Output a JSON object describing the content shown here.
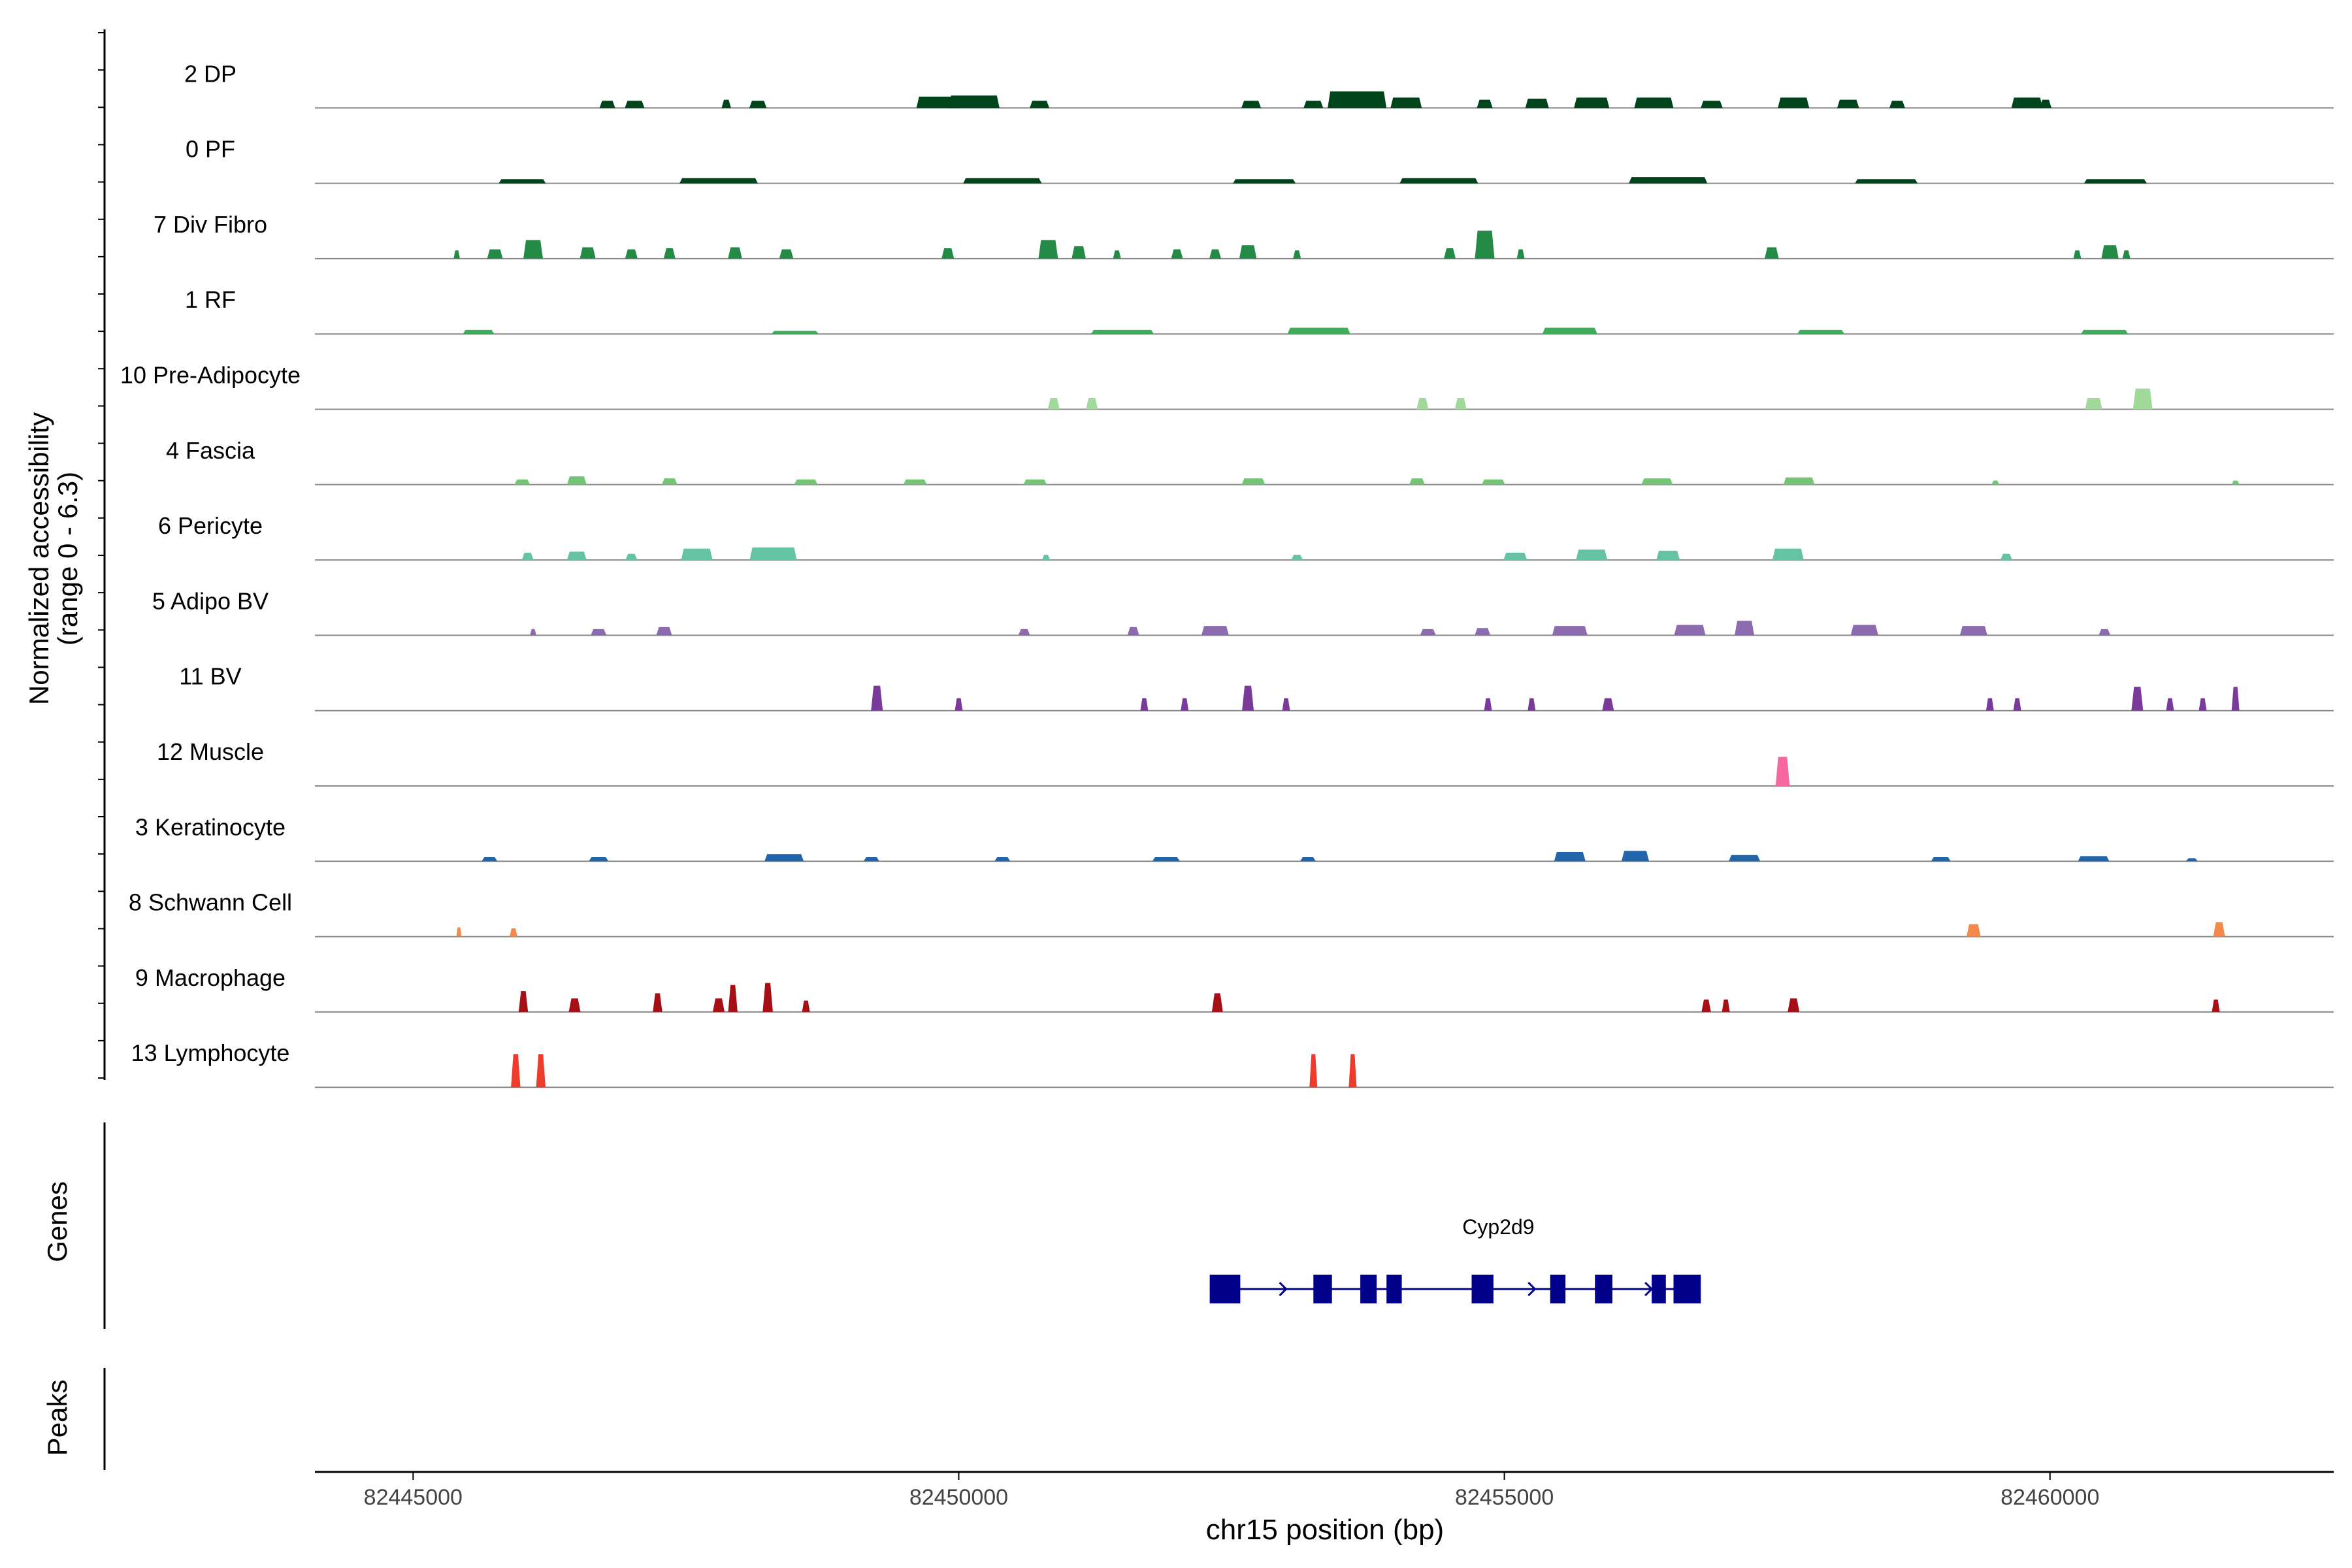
{
  "chart_data": {
    "type": "area",
    "title": "",
    "ylabel_line1": "Normalized accessibility",
    "ylabel_line2": "(range 0 - 6.3)",
    "xlabel": "chr15 position (bp)",
    "genes_label": "Genes",
    "peaks_label": "Peaks",
    "xlim": [
      82444100,
      82462600
    ],
    "xticks": [
      82445000,
      82450000,
      82455000,
      82460000
    ],
    "xtick_labels": [
      "82445000",
      "82450000",
      "82455000",
      "82460000"
    ],
    "track_ymax": 6.3,
    "tracks": [
      {
        "name": "2 DP",
        "color": "#00441b",
        "peaks": [
          [
            82446780,
            0.7,
            2
          ],
          [
            82447030,
            0.7,
            2.5
          ],
          [
            82447870,
            0.8,
            1.2
          ],
          [
            82448160,
            0.7,
            2.2
          ],
          [
            82449810,
            1.1,
            5.5
          ],
          [
            82450140,
            1.2,
            6.5
          ],
          [
            82450740,
            0.7,
            2.5
          ],
          [
            82452680,
            0.7,
            2.5
          ],
          [
            82453250,
            0.7,
            2.5
          ],
          [
            82453650,
            1.6,
            7.5
          ],
          [
            82454100,
            1.0,
            4
          ],
          [
            82454820,
            0.8,
            2
          ],
          [
            82455300,
            0.9,
            3
          ],
          [
            82455800,
            1.0,
            4.5
          ],
          [
            82456370,
            1.0,
            5
          ],
          [
            82456900,
            0.7,
            2.8
          ],
          [
            82457650,
            1.0,
            4
          ],
          [
            82458150,
            0.8,
            2.8
          ],
          [
            82458600,
            0.7,
            2
          ],
          [
            82459790,
            1.0,
            4
          ],
          [
            82459960,
            0.8,
            1.5
          ]
        ]
      },
      {
        "name": "0 PF",
        "color": "#00441b",
        "peaks": [
          [
            82446000,
            0.4,
            6
          ],
          [
            82447800,
            0.5,
            10
          ],
          [
            82450400,
            0.5,
            10
          ],
          [
            82452800,
            0.4,
            8
          ],
          [
            82454400,
            0.5,
            10
          ],
          [
            82456500,
            0.6,
            10
          ],
          [
            82458500,
            0.4,
            8
          ],
          [
            82460600,
            0.4,
            8
          ]
        ]
      },
      {
        "name": "7 Div Fibro",
        "color": "#238b45",
        "peaks": [
          [
            82445400,
            0.8,
            0.8
          ],
          [
            82445750,
            0.9,
            2
          ],
          [
            82446100,
            1.8,
            2.5
          ],
          [
            82446600,
            1.1,
            2
          ],
          [
            82447000,
            0.9,
            1.6
          ],
          [
            82447350,
            1.0,
            1.5
          ],
          [
            82447950,
            1.1,
            1.8
          ],
          [
            82448420,
            0.9,
            1.8
          ],
          [
            82449900,
            1.0,
            1.6
          ],
          [
            82450820,
            1.8,
            2.5
          ],
          [
            82451100,
            1.2,
            1.8
          ],
          [
            82451450,
            0.8,
            1
          ],
          [
            82452000,
            0.9,
            1.5
          ],
          [
            82452350,
            0.9,
            1.5
          ],
          [
            82452650,
            1.3,
            2.2
          ],
          [
            82453100,
            0.8,
            1
          ],
          [
            82454500,
            1.0,
            1.5
          ],
          [
            82454820,
            2.7,
            2.5
          ],
          [
            82455150,
            0.9,
            1
          ],
          [
            82457450,
            1.1,
            1.8
          ],
          [
            82460250,
            0.8,
            1
          ],
          [
            82460550,
            1.3,
            2.2
          ],
          [
            82460700,
            0.8,
            1
          ]
        ]
      },
      {
        "name": "1 RF",
        "color": "#41ab5d",
        "peaks": [
          [
            82445600,
            0.4,
            4
          ],
          [
            82448500,
            0.3,
            6
          ],
          [
            82451500,
            0.4,
            8
          ],
          [
            82453300,
            0.6,
            8
          ],
          [
            82455600,
            0.6,
            7
          ],
          [
            82457900,
            0.4,
            6
          ],
          [
            82460500,
            0.4,
            6
          ]
        ]
      },
      {
        "name": "10 Pre-Adipocyte",
        "color": "#a1d99b",
        "peaks": [
          [
            82450870,
            1.1,
            1.5
          ],
          [
            82451220,
            1.1,
            1.5
          ],
          [
            82454250,
            1.1,
            1.5
          ],
          [
            82454600,
            1.1,
            1.5
          ],
          [
            82460400,
            1.1,
            2.2
          ],
          [
            82460850,
            2.0,
            2.5
          ]
        ]
      },
      {
        "name": "4 Fascia",
        "color": "#74c476",
        "peaks": [
          [
            82446000,
            0.5,
            2
          ],
          [
            82446500,
            0.8,
            2.5
          ],
          [
            82447350,
            0.6,
            2
          ],
          [
            82448600,
            0.5,
            3
          ],
          [
            82449600,
            0.5,
            3
          ],
          [
            82450700,
            0.5,
            3
          ],
          [
            82452700,
            0.6,
            3
          ],
          [
            82454200,
            0.6,
            2
          ],
          [
            82454900,
            0.5,
            3
          ],
          [
            82456400,
            0.6,
            4
          ],
          [
            82457700,
            0.7,
            4
          ],
          [
            82459500,
            0.4,
            1
          ],
          [
            82461700,
            0.4,
            1
          ]
        ]
      },
      {
        "name": "6 Pericyte",
        "color": "#66c2a4",
        "peaks": [
          [
            82446050,
            0.7,
            1.5
          ],
          [
            82446500,
            0.8,
            2.5
          ],
          [
            82447000,
            0.6,
            1.5
          ],
          [
            82447600,
            1.1,
            4
          ],
          [
            82448300,
            1.2,
            6
          ],
          [
            82450800,
            0.5,
            1
          ],
          [
            82453100,
            0.5,
            1.5
          ],
          [
            82455100,
            0.7,
            3
          ],
          [
            82455800,
            1.0,
            4
          ],
          [
            82456500,
            0.9,
            3
          ],
          [
            82457600,
            1.1,
            4
          ],
          [
            82459600,
            0.6,
            1.5
          ]
        ]
      },
      {
        "name": "5 Adipo BV",
        "color": "#8c6bb1",
        "peaks": [
          [
            82446100,
            0.6,
            0.8
          ],
          [
            82446700,
            0.6,
            2
          ],
          [
            82447300,
            0.8,
            2
          ],
          [
            82450600,
            0.6,
            1.5
          ],
          [
            82451600,
            0.8,
            1.5
          ],
          [
            82452350,
            0.9,
            3.5
          ],
          [
            82454300,
            0.6,
            2
          ],
          [
            82454800,
            0.7,
            2
          ],
          [
            82455600,
            0.9,
            4.5
          ],
          [
            82456700,
            1.0,
            4
          ],
          [
            82457200,
            1.4,
            2.5
          ],
          [
            82458300,
            1.0,
            3.5
          ],
          [
            82459300,
            0.9,
            3.5
          ],
          [
            82460500,
            0.6,
            1.5
          ]
        ]
      },
      {
        "name": "11 BV",
        "color": "#7a3a9a",
        "peaks": [
          [
            82449250,
            2.4,
            1.5
          ],
          [
            82450000,
            1.2,
            1
          ],
          [
            82451700,
            1.2,
            1
          ],
          [
            82452070,
            1.2,
            1
          ],
          [
            82452650,
            2.4,
            1.5
          ],
          [
            82453000,
            1.2,
            1
          ],
          [
            82454850,
            1.2,
            1
          ],
          [
            82455250,
            1.2,
            1
          ],
          [
            82455950,
            1.2,
            1.5
          ],
          [
            82459450,
            1.2,
            1
          ],
          [
            82459700,
            1.2,
            1
          ],
          [
            82460800,
            2.3,
            1.5
          ],
          [
            82461100,
            1.2,
            1
          ],
          [
            82461400,
            1.2,
            1
          ],
          [
            82461700,
            2.3,
            1
          ]
        ]
      },
      {
        "name": "12 Muscle",
        "color": "#f768a1",
        "peaks": [
          [
            82457550,
            2.8,
            1.8
          ]
        ]
      },
      {
        "name": "3 Keratinocyte",
        "color": "#2166ac",
        "peaks": [
          [
            82445700,
            0.4,
            2
          ],
          [
            82446700,
            0.4,
            2.5
          ],
          [
            82448400,
            0.7,
            5
          ],
          [
            82449200,
            0.4,
            2
          ],
          [
            82450400,
            0.4,
            2
          ],
          [
            82451900,
            0.4,
            3.5
          ],
          [
            82453200,
            0.4,
            2
          ],
          [
            82455600,
            0.9,
            4
          ],
          [
            82456200,
            1.0,
            3.5
          ],
          [
            82457200,
            0.6,
            4
          ],
          [
            82459000,
            0.4,
            2.5
          ],
          [
            82460400,
            0.5,
            4
          ],
          [
            82461300,
            0.3,
            1.5
          ]
        ]
      },
      {
        "name": "8 Schwann Cell",
        "color": "#f4894c",
        "peaks": [
          [
            82445420,
            0.9,
            0.6
          ],
          [
            82445920,
            0.8,
            1
          ],
          [
            82459300,
            1.2,
            1.8
          ],
          [
            82461550,
            1.4,
            1.5
          ]
        ]
      },
      {
        "name": "9 Macrophage",
        "color": "#a50f15",
        "peaks": [
          [
            82446010,
            2.0,
            1.2
          ],
          [
            82446480,
            1.3,
            1.5
          ],
          [
            82447240,
            1.8,
            1.2
          ],
          [
            82447800,
            1.3,
            1.5
          ],
          [
            82447930,
            2.6,
            1.2
          ],
          [
            82448250,
            2.8,
            1.3
          ],
          [
            82448600,
            1.1,
            1
          ],
          [
            82452370,
            1.8,
            1.4
          ],
          [
            82456850,
            1.2,
            1.2
          ],
          [
            82457030,
            1.2,
            1
          ],
          [
            82457650,
            1.3,
            1.5
          ],
          [
            82461520,
            1.2,
            1
          ]
        ]
      },
      {
        "name": "13 Lymphocyte",
        "color": "#ef3b2c",
        "peaks": [
          [
            82445940,
            3.2,
            1.2
          ],
          [
            82446170,
            3.2,
            1.2
          ],
          [
            82453250,
            3.2,
            1
          ],
          [
            82453610,
            3.2,
            1
          ]
        ]
      }
    ],
    "gene": {
      "name": "Cyp2d9",
      "color": "#00008b",
      "start": 82452300,
      "end": 82456800,
      "exons": [
        [
          82452300,
          82452580
        ],
        [
          82453250,
          82453420
        ],
        [
          82453680,
          82453830
        ],
        [
          82453920,
          82454060
        ],
        [
          82454700,
          82454900
        ],
        [
          82455420,
          82455560
        ],
        [
          82455830,
          82455990
        ],
        [
          82456350,
          82456480
        ],
        [
          82456550,
          82456800
        ]
      ],
      "arrows": [
        82452380,
        82453000,
        82455280,
        82456350
      ]
    }
  }
}
